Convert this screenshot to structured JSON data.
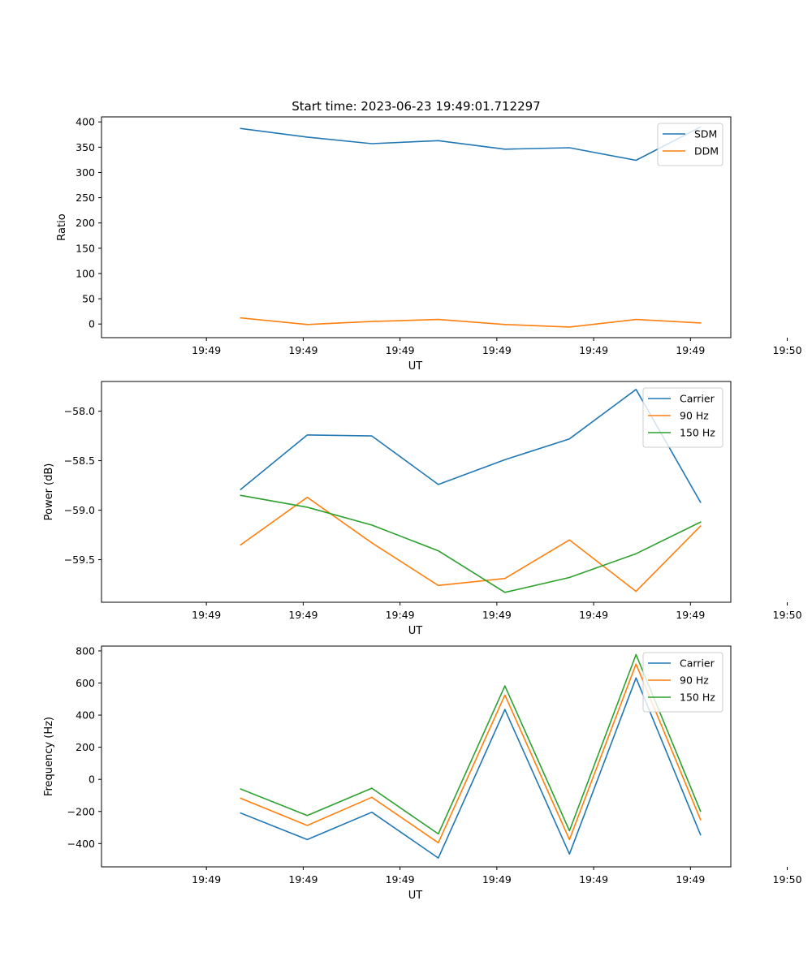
{
  "figure": {
    "title": "Start time: 2023-06-23 19:49:01.712297"
  },
  "chart_data": [
    {
      "type": "line",
      "title": "Start time: 2023-06-23 19:49:01.712297",
      "xlabel": "UT",
      "ylabel": "Ratio",
      "x_tick_labels": [
        "19:49",
        "19:49",
        "19:49",
        "19:49",
        "19:49",
        "19:49",
        "19:50"
      ],
      "xlim": [
        -5.2,
        26.0
      ],
      "ylim": [
        -27,
        410
      ],
      "y_ticks": [
        0,
        50,
        100,
        150,
        200,
        250,
        300,
        350,
        400
      ],
      "y_tick_labels": [
        "0",
        "50",
        "100",
        "150",
        "200",
        "250",
        "300",
        "350",
        "400"
      ],
      "x": [
        1.7,
        5.0,
        8.2,
        11.5,
        14.8,
        18.0,
        21.3,
        24.5
      ],
      "series": [
        {
          "name": "SDM",
          "color": "#1f77b4",
          "values": [
            387,
            370,
            357,
            363,
            346,
            349,
            324,
            390
          ]
        },
        {
          "name": "DDM",
          "color": "#ff7f0e",
          "values": [
            12,
            -1,
            5,
            9,
            -1,
            -6,
            9,
            2
          ]
        }
      ],
      "legend": "top-right",
      "grid": false
    },
    {
      "type": "line",
      "xlabel": "UT",
      "ylabel": "Power (dB)",
      "x_tick_labels": [
        "19:49",
        "19:49",
        "19:49",
        "19:49",
        "19:49",
        "19:49",
        "19:50"
      ],
      "xlim": [
        -5.2,
        26.0
      ],
      "ylim": [
        -59.93,
        -57.7
      ],
      "y_ticks": [
        -59.5,
        -59.0,
        -58.5,
        -58.0
      ],
      "y_tick_labels": [
        "−59.5",
        "−59.0",
        "−58.5",
        "−58.0"
      ],
      "x": [
        1.7,
        5.0,
        8.2,
        11.5,
        14.8,
        18.0,
        21.3,
        24.5
      ],
      "series": [
        {
          "name": "Carrier",
          "color": "#1f77b4",
          "values": [
            -58.79,
            -58.24,
            -58.25,
            -58.74,
            -58.49,
            -58.28,
            -57.78,
            -58.92
          ]
        },
        {
          "name": "90 Hz",
          "color": "#ff7f0e",
          "values": [
            -59.35,
            -58.87,
            -59.33,
            -59.76,
            -59.69,
            -59.3,
            -59.82,
            -59.16
          ]
        },
        {
          "name": "150 Hz",
          "color": "#2ca02c",
          "values": [
            -58.85,
            -58.97,
            -59.15,
            -59.41,
            -59.83,
            -59.68,
            -59.44,
            -59.12
          ]
        }
      ],
      "legend": "top-right",
      "grid": false
    },
    {
      "type": "line",
      "xlabel": "UT",
      "ylabel": "Frequency (Hz)",
      "x_tick_labels": [
        "19:49",
        "19:49",
        "19:49",
        "19:49",
        "19:49",
        "19:49",
        "19:50"
      ],
      "xlim": [
        -5.2,
        26.0
      ],
      "ylim": [
        -545,
        830
      ],
      "y_ticks": [
        -400,
        -200,
        0,
        200,
        400,
        600,
        800
      ],
      "y_tick_labels": [
        "−400",
        "−200",
        "0",
        "200",
        "400",
        "600",
        "800"
      ],
      "x": [
        1.7,
        5.0,
        8.2,
        11.5,
        14.8,
        18.0,
        21.3,
        24.5
      ],
      "series": [
        {
          "name": "Carrier",
          "color": "#1f77b4",
          "values": [
            -210,
            -375,
            -205,
            -490,
            435,
            -465,
            632,
            -345
          ]
        },
        {
          "name": "90 Hz",
          "color": "#ff7f0e",
          "values": [
            -118,
            -287,
            -112,
            -395,
            525,
            -375,
            718,
            -252
          ]
        },
        {
          "name": "150 Hz",
          "color": "#2ca02c",
          "values": [
            -60,
            -225,
            -55,
            -340,
            582,
            -320,
            777,
            -198
          ]
        }
      ],
      "legend": "top-right",
      "grid": false
    }
  ]
}
